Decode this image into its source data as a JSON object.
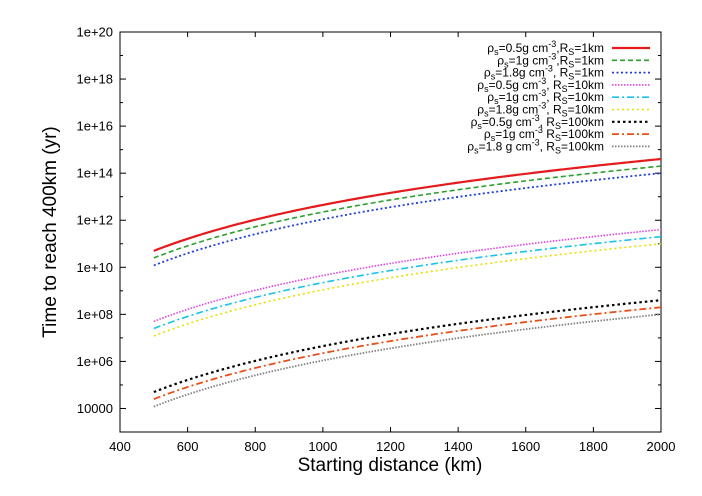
{
  "chart_data": {
    "type": "line",
    "xlabel": "Starting distance (km)",
    "ylabel": "Time to reach 400km (yr)",
    "xlim": [
      400,
      2000
    ],
    "ylim_log10": [
      3,
      20
    ],
    "yscale": "log",
    "x_ticks": [
      "400",
      "600",
      "800",
      "1000",
      "1200",
      "1400",
      "1600",
      "1800",
      "2000"
    ],
    "y_ticks": [
      "10000",
      "1e+06",
      "1e+08",
      "1e+10",
      "1e+12",
      "1e+14",
      "1e+16",
      "1e+18",
      "1e+20"
    ],
    "legend_position": "top-right",
    "x_start": 500,
    "x_end": 2000,
    "series": [
      {
        "name": "ρs=0.5g cm-3,Rs=1km",
        "legend": {
          "rho": "=0.5g cm",
          "rad": "=1km",
          "comma": ","
        },
        "y_at_500": 50000000000.0,
        "y_at_2000": 400000000000000.0,
        "color": "#e41a1c",
        "dash": "",
        "width": 2.2
      },
      {
        "name": "ρs=1g cm-3,Rs=1km",
        "legend": {
          "rho": "=1g cm",
          "rad": "=1km",
          "comma": ","
        },
        "y_at_500": 25000000000.0,
        "y_at_2000": 200000000000000.0,
        "color": "#2ca02c",
        "dash": "5,3",
        "width": 1.6
      },
      {
        "name": "ρs=1.8g cm-3, Rs=1km",
        "legend": {
          "rho": "=1.8g cm",
          "rad": "=1km",
          "comma": ", "
        },
        "y_at_500": 12000000000.0,
        "y_at_2000": 100000000000000.0,
        "color": "#1f3ed8",
        "dash": "2,2.5",
        "width": 1.8
      },
      {
        "name": "ρs=0.5g cm-3, Rs=10km",
        "legend": {
          "rho": "=0.5g cm",
          "rad": "=10km",
          "comma": ", "
        },
        "y_at_500": 50000000.0,
        "y_at_2000": 400000000000.0,
        "color": "#e040e0",
        "dash": "1.5,1.5",
        "width": 1.6
      },
      {
        "name": "ρs=1g cm-3, Rs=10km",
        "legend": {
          "rho": "=1g cm",
          "rad": "=10km",
          "comma": ", "
        },
        "y_at_500": 25000000.0,
        "y_at_2000": 200000000000.0,
        "color": "#17c3e8",
        "dash": "7,3,2,3",
        "width": 1.6
      },
      {
        "name": "ρs=1.8g cm-3, Rs=10km",
        "legend": {
          "rho": "=1.8g cm",
          "rad": "=10km",
          "comma": ", "
        },
        "y_at_500": 12000000.0,
        "y_at_2000": 100000000000.0,
        "color": "#e6e000",
        "dash": "2,3",
        "width": 1.6
      },
      {
        "name": "ρs=0.5g cm-3, Rs=100km",
        "legend": {
          "rho": "=0.5g cm",
          "rad": "=100km",
          "comma": ", "
        },
        "y_at_500": 50000.0,
        "y_at_2000": 400000000.0,
        "color": "#000000",
        "dash": "2.5,3",
        "width": 2.2
      },
      {
        "name": "ρs=1g cm-3 Rs=100km",
        "legend": {
          "rho": "=1g cm",
          "rad": "=100km",
          "comma": " "
        },
        "y_at_500": 25000.0,
        "y_at_2000": 200000000.0,
        "color": "#e8501a",
        "dash": "7,3,2,3",
        "width": 1.8
      },
      {
        "name": "ρs=1.8 g cm-3, Rs=100km",
        "legend": {
          "rho": "=1.8 g cm",
          "rad": "=100km",
          "comma": ", "
        },
        "y_at_500": 12000.0,
        "y_at_2000": 100000000.0,
        "color": "#808080",
        "dash": "1.5,1.5",
        "width": 1.8
      }
    ],
    "legend_symbols": {
      "rho": "ρ",
      "sub_s": "s",
      "sup": "-3",
      "radius": "R",
      "sub_S": "S"
    }
  }
}
